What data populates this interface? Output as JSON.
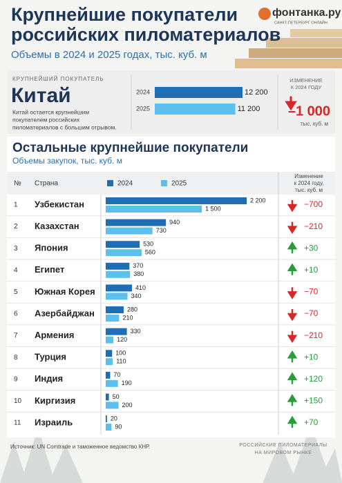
{
  "header": {
    "title": [
      "Крупнейшие покупатели",
      "российских пиломатериалов"
    ],
    "subtitle": "Объемы в 2024 и 2025 годах, тыс. куб. м",
    "logo": "фонтанка.ру",
    "logo_sub": "САНКТ-ПЕТЕРБУРГ ОНЛАЙН"
  },
  "top": {
    "label": "КРУПНЕЙШИЙ ПОКУПАТЕЛЬ",
    "country": "Китай",
    "note": [
      "Китай остается крупнейшим",
      "покупателем российских",
      "пиломатериалов с большим отрывом."
    ],
    "series": [
      {
        "name": "2024",
        "color": "#1f6db5",
        "value": 12200,
        "value_label": "12 200"
      },
      {
        "name": "2025",
        "color": "#5bc0eb",
        "value": 11200,
        "value_label": "11 200"
      }
    ],
    "change_header": [
      "ИЗМЕНЕНИЕ",
      "К 2024 ГОДУ"
    ],
    "change": -1000,
    "change_label": "–1 000",
    "change_unit": "тыс. куб. м"
  },
  "section": {
    "title": "Остальные крупнейшие покупатели",
    "subtitle": "Объемы закупок, тыс. куб. м"
  },
  "table": {
    "columns": [
      "№",
      "Страна"
    ],
    "series": [
      {
        "name": "2024",
        "color": "#1f6db5"
      },
      {
        "name": "2025",
        "color": "#5bc0eb"
      }
    ],
    "change_header": [
      "Изменение",
      "к 2024 году,",
      "тыс. куб. м"
    ],
    "rows": [
      {
        "n": 1,
        "country": "Узбекистан",
        "values": [
          2200,
          1500
        ],
        "value_labels": [
          "2 200",
          "1 500"
        ],
        "change": -700,
        "change_label": "−700"
      },
      {
        "n": 2,
        "country": "Казахстан",
        "values": [
          940,
          730
        ],
        "value_labels": [
          "940",
          "730"
        ],
        "change": -210,
        "change_label": "−210"
      },
      {
        "n": 3,
        "country": "Япония",
        "values": [
          530,
          560
        ],
        "value_labels": [
          "530",
          "560"
        ],
        "change": 30,
        "change_label": "+30"
      },
      {
        "n": 4,
        "country": "Египет",
        "values": [
          370,
          380
        ],
        "value_labels": [
          "370",
          "380"
        ],
        "change": 10,
        "change_label": "+10"
      },
      {
        "n": 5,
        "country": "Южная Корея",
        "values": [
          410,
          340
        ],
        "value_labels": [
          "410",
          "340"
        ],
        "change": -70,
        "change_label": "−70"
      },
      {
        "n": 6,
        "country": "Азербайджан",
        "values": [
          280,
          210
        ],
        "value_labels": [
          "280",
          "210"
        ],
        "change": -70,
        "change_label": "−70"
      },
      {
        "n": 7,
        "country": "Армения",
        "values": [
          330,
          120
        ],
        "value_labels": [
          "330",
          "120"
        ],
        "change": -210,
        "change_label": "−210"
      },
      {
        "n": 8,
        "country": "Турция",
        "values": [
          100,
          110
        ],
        "value_labels": [
          "100",
          "110"
        ],
        "change": 10,
        "change_label": "+10"
      },
      {
        "n": 9,
        "country": "Индия",
        "values": [
          70,
          190
        ],
        "value_labels": [
          "70",
          "190"
        ],
        "change": 120,
        "change_label": "+120"
      },
      {
        "n": 10,
        "country": "Киргизия",
        "values": [
          50,
          200
        ],
        "value_labels": [
          "50",
          "200"
        ],
        "change": 150,
        "change_label": "+150"
      },
      {
        "n": 11,
        "country": "Израиль",
        "values": [
          20,
          90
        ],
        "value_labels": [
          "20",
          "90"
        ],
        "change": 70,
        "change_label": "+70"
      }
    ]
  },
  "footer": {
    "source": "Источник: UN Comtrade и таможенное ведомство КНР.",
    "tag": [
      "РОССИЙСКИЕ ПИЛОМАТЕРИАЛЫ",
      "НА МИРОВОМ РЫНКЕ"
    ]
  }
}
